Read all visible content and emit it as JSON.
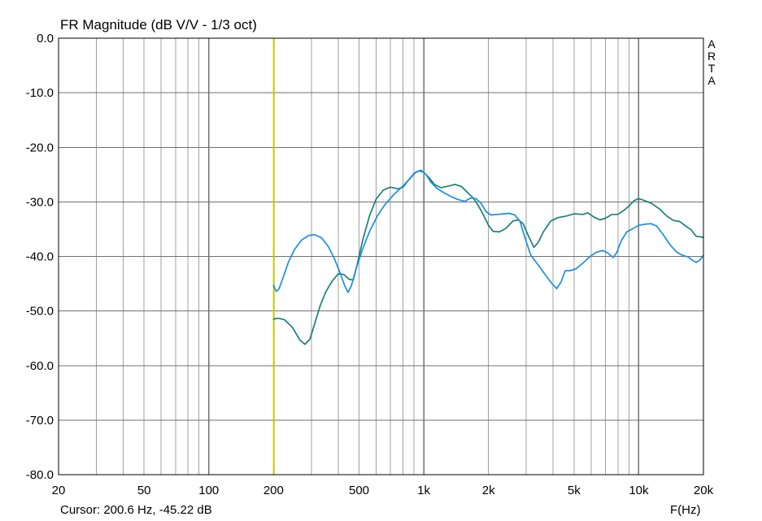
{
  "title": "FR Magnitude (dB V/V - 1/3 oct)",
  "cursor_text": "Cursor: 200.6 Hz, -45.22 dB",
  "x_unit_label": "F(Hz)",
  "side_label": [
    "A",
    "R",
    "T",
    "A"
  ],
  "colors": {
    "grid": "#a0a0a0",
    "grid_major": "#707070",
    "frame": "#000000",
    "cursor": "#c8c800",
    "series_teal": "#18807a",
    "series_blue": "#1a8fe0"
  },
  "chart_data": {
    "type": "line",
    "title": "FR Magnitude (dB V/V - 1/3 oct)",
    "xlabel": "F(Hz)",
    "ylabel": "",
    "xscale": "log",
    "xlim": [
      20,
      20000
    ],
    "ylim": [
      -80,
      0
    ],
    "grid": true,
    "x_ticks": [
      {
        "value": 20,
        "label": "20"
      },
      {
        "value": 50,
        "label": "50"
      },
      {
        "value": 100,
        "label": "100"
      },
      {
        "value": 200,
        "label": "200"
      },
      {
        "value": 500,
        "label": "500"
      },
      {
        "value": 1000,
        "label": "1k"
      },
      {
        "value": 2000,
        "label": "2k"
      },
      {
        "value": 5000,
        "label": "5k"
      },
      {
        "value": 10000,
        "label": "10k"
      },
      {
        "value": 20000,
        "label": "20k"
      }
    ],
    "y_ticks": [
      {
        "value": 0,
        "label": "0.0"
      },
      {
        "value": -10,
        "label": "-10.0"
      },
      {
        "value": -20,
        "label": "-20.0"
      },
      {
        "value": -30,
        "label": "-30.0"
      },
      {
        "value": -40,
        "label": "-40.0"
      },
      {
        "value": -50,
        "label": "-50.0"
      },
      {
        "value": -60,
        "label": "-60.0"
      },
      {
        "value": -70,
        "label": "-70.0"
      },
      {
        "value": -80,
        "label": "-80.0"
      }
    ],
    "cursor": {
      "x": 200.6,
      "y": -45.22
    },
    "series": [
      {
        "color": "#18807a",
        "points": [
          [
            200,
            -51.5
          ],
          [
            210,
            -51.3
          ],
          [
            225,
            -51.6
          ],
          [
            245,
            -53.0
          ],
          [
            265,
            -55.3
          ],
          [
            280,
            -56.1
          ],
          [
            295,
            -55.2
          ],
          [
            310,
            -52.5
          ],
          [
            330,
            -49.0
          ],
          [
            350,
            -46.5
          ],
          [
            375,
            -44.5
          ],
          [
            400,
            -43.2
          ],
          [
            425,
            -43.3
          ],
          [
            450,
            -44.2
          ],
          [
            470,
            -44.3
          ],
          [
            490,
            -41.5
          ],
          [
            520,
            -37.0
          ],
          [
            560,
            -32.5
          ],
          [
            600,
            -29.5
          ],
          [
            650,
            -27.8
          ],
          [
            700,
            -27.3
          ],
          [
            760,
            -27.6
          ],
          [
            800,
            -27.3
          ],
          [
            850,
            -26.0
          ],
          [
            900,
            -24.8
          ],
          [
            950,
            -24.3
          ],
          [
            1000,
            -24.6
          ],
          [
            1060,
            -25.6
          ],
          [
            1120,
            -26.8
          ],
          [
            1200,
            -27.4
          ],
          [
            1300,
            -27.1
          ],
          [
            1400,
            -26.8
          ],
          [
            1500,
            -27.2
          ],
          [
            1600,
            -28.3
          ],
          [
            1700,
            -29.3
          ],
          [
            1800,
            -30.8
          ],
          [
            1900,
            -32.5
          ],
          [
            2000,
            -34.3
          ],
          [
            2100,
            -35.4
          ],
          [
            2250,
            -35.5
          ],
          [
            2400,
            -34.9
          ],
          [
            2600,
            -33.5
          ],
          [
            2750,
            -33.3
          ],
          [
            2900,
            -34.0
          ],
          [
            3050,
            -36.0
          ],
          [
            3250,
            -38.3
          ],
          [
            3400,
            -37.5
          ],
          [
            3600,
            -35.5
          ],
          [
            3900,
            -33.5
          ],
          [
            4200,
            -32.9
          ],
          [
            4600,
            -32.6
          ],
          [
            5000,
            -32.2
          ],
          [
            5500,
            -32.3
          ],
          [
            5800,
            -32.0
          ],
          [
            6200,
            -32.8
          ],
          [
            6600,
            -33.3
          ],
          [
            7000,
            -33.0
          ],
          [
            7500,
            -32.3
          ],
          [
            8000,
            -32.3
          ],
          [
            8500,
            -31.6
          ],
          [
            9000,
            -30.8
          ],
          [
            9500,
            -29.8
          ],
          [
            10000,
            -29.4
          ],
          [
            10700,
            -29.8
          ],
          [
            11500,
            -30.3
          ],
          [
            12500,
            -31.3
          ],
          [
            13500,
            -32.6
          ],
          [
            14500,
            -33.4
          ],
          [
            15500,
            -33.6
          ],
          [
            16500,
            -34.4
          ],
          [
            17500,
            -35.1
          ],
          [
            18500,
            -36.3
          ],
          [
            20000,
            -36.5
          ]
        ]
      },
      {
        "color": "#1a8fe0",
        "points": [
          [
            200,
            -45.3
          ],
          [
            206,
            -46.4
          ],
          [
            212,
            -46.0
          ],
          [
            222,
            -43.8
          ],
          [
            235,
            -41.0
          ],
          [
            250,
            -38.8
          ],
          [
            270,
            -37.0
          ],
          [
            290,
            -36.2
          ],
          [
            310,
            -36.0
          ],
          [
            335,
            -36.6
          ],
          [
            360,
            -38.2
          ],
          [
            385,
            -40.5
          ],
          [
            410,
            -43.2
          ],
          [
            430,
            -45.5
          ],
          [
            445,
            -46.6
          ],
          [
            460,
            -45.4
          ],
          [
            485,
            -42.2
          ],
          [
            520,
            -38.6
          ],
          [
            560,
            -35.4
          ],
          [
            610,
            -32.5
          ],
          [
            660,
            -30.5
          ],
          [
            720,
            -28.8
          ],
          [
            790,
            -27.3
          ],
          [
            860,
            -25.8
          ],
          [
            920,
            -24.5
          ],
          [
            970,
            -24.2
          ],
          [
            1020,
            -24.9
          ],
          [
            1080,
            -26.4
          ],
          [
            1150,
            -27.5
          ],
          [
            1250,
            -28.4
          ],
          [
            1350,
            -29.1
          ],
          [
            1450,
            -29.6
          ],
          [
            1550,
            -29.9
          ],
          [
            1650,
            -29.3
          ],
          [
            1750,
            -29.4
          ],
          [
            1850,
            -30.3
          ],
          [
            1950,
            -31.8
          ],
          [
            2050,
            -32.4
          ],
          [
            2200,
            -32.3
          ],
          [
            2350,
            -32.2
          ],
          [
            2500,
            -32.1
          ],
          [
            2650,
            -32.4
          ],
          [
            2800,
            -33.5
          ],
          [
            2950,
            -36.5
          ],
          [
            3150,
            -39.8
          ],
          [
            3400,
            -41.5
          ],
          [
            3650,
            -43.2
          ],
          [
            3950,
            -45.0
          ],
          [
            4150,
            -45.9
          ],
          [
            4350,
            -44.7
          ],
          [
            4550,
            -42.6
          ],
          [
            4800,
            -42.6
          ],
          [
            5100,
            -42.3
          ],
          [
            5500,
            -41.2
          ],
          [
            5900,
            -40.1
          ],
          [
            6300,
            -39.3
          ],
          [
            6800,
            -38.9
          ],
          [
            7200,
            -39.4
          ],
          [
            7600,
            -40.2
          ],
          [
            7900,
            -39.3
          ],
          [
            8300,
            -37.1
          ],
          [
            8800,
            -35.5
          ],
          [
            9400,
            -34.9
          ],
          [
            10000,
            -34.3
          ],
          [
            10700,
            -34.1
          ],
          [
            11400,
            -34.0
          ],
          [
            12100,
            -34.4
          ],
          [
            13000,
            -36.0
          ],
          [
            14000,
            -37.9
          ],
          [
            15000,
            -39.2
          ],
          [
            16000,
            -39.8
          ],
          [
            17000,
            -40.1
          ],
          [
            17800,
            -40.7
          ],
          [
            18500,
            -41.1
          ],
          [
            19200,
            -40.7
          ],
          [
            20000,
            -39.8
          ]
        ]
      }
    ]
  }
}
